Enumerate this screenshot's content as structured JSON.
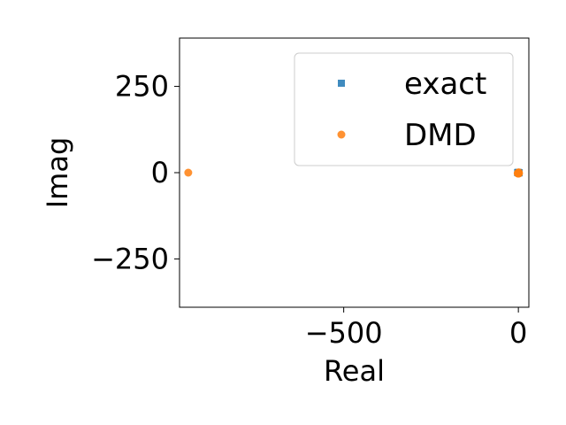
{
  "chart_data": {
    "type": "scatter",
    "title": "",
    "xlabel": "Real",
    "ylabel": "Imag",
    "xlim": [
      -970,
      30
    ],
    "ylim": [
      -390,
      390
    ],
    "xticks": [
      {
        "value": -500,
        "label": "−500"
      },
      {
        "value": 0,
        "label": "0"
      }
    ],
    "yticks": [
      {
        "value": 250,
        "label": "250"
      },
      {
        "value": 0,
        "label": "0"
      },
      {
        "value": -250,
        "label": "−250"
      }
    ],
    "grid": false,
    "legend_position": "top-right",
    "series": [
      {
        "name": "exact",
        "marker": "square",
        "color": "#1f77b4",
        "points": [
          {
            "x": 0,
            "y": 0
          },
          {
            "x": -1,
            "y": 1
          },
          {
            "x": 1,
            "y": -1
          },
          {
            "x": -2,
            "y": 0
          },
          {
            "x": 2,
            "y": 0
          }
        ]
      },
      {
        "name": "DMD",
        "marker": "circle",
        "color": "#ff7f0e",
        "points": [
          {
            "x": -945,
            "y": 0
          },
          {
            "x": 0,
            "y": 0
          },
          {
            "x": -1,
            "y": -1
          },
          {
            "x": 1,
            "y": 1
          },
          {
            "x": -2,
            "y": -2
          },
          {
            "x": 2,
            "y": -2
          },
          {
            "x": 0,
            "y": -3
          }
        ]
      }
    ]
  }
}
